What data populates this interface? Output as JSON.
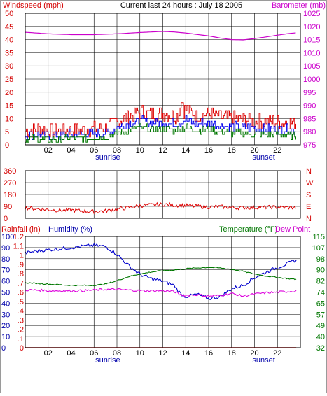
{
  "header": {
    "left": "Windspeed (mph)",
    "center": "Current last 24 hours : July 18 2005",
    "right": "Barometer (mb)"
  },
  "colors": {
    "wind_axis": "#d40000",
    "baro_axis": "#cc00cc",
    "dir_axis": "#d40000",
    "rain_axis": "#d40000",
    "hum_axis": "#0000aa",
    "temp_axis": "#007700",
    "grid": "#000000",
    "frame": "#000000",
    "sun_label": "#0000aa"
  },
  "chart_data": [
    {
      "type": "line",
      "title": "",
      "xlabel": "",
      "x_ticks": [
        "02",
        "04",
        "06",
        "08",
        "10",
        "12",
        "14",
        "16",
        "18",
        "20",
        "22"
      ],
      "x_annotations": [
        {
          "label": "sunrise",
          "x": 7.2
        },
        {
          "label": "sunset",
          "x": 20.8
        }
      ],
      "xlim": [
        0,
        24
      ],
      "left_axis": {
        "label": "Windspeed (mph)",
        "ylim": [
          0,
          50
        ],
        "ticks": [
          "0",
          "5",
          "10",
          "15",
          "20",
          "25",
          "30",
          "35",
          "40",
          "45",
          "50"
        ]
      },
      "right_axis": {
        "label": "Barometer (mb)",
        "ylim": [
          975,
          1025
        ],
        "ticks": [
          "975",
          "980",
          "985",
          "990",
          "995",
          "1000",
          "1005",
          "1010",
          "1015",
          "1020",
          "1025"
        ]
      },
      "series": [
        {
          "color": "#dd0000",
          "axis": "left",
          "role": "gust",
          "x": [
            0,
            1,
            2,
            3,
            4,
            5,
            6,
            7,
            8,
            9,
            10,
            11,
            12,
            13,
            14,
            15,
            16,
            17,
            18,
            19,
            20,
            21,
            22,
            23,
            23.7
          ],
          "y": [
            5.5,
            6,
            5.5,
            5.5,
            5.5,
            6,
            6,
            6.5,
            9,
            11,
            12.5,
            12,
            12,
            11,
            13.5,
            11,
            12,
            10.5,
            10,
            9.5,
            9,
            9,
            8.5,
            8.5,
            8
          ]
        },
        {
          "color": "#0000ee",
          "axis": "left",
          "role": "average",
          "x": [
            0,
            1,
            2,
            3,
            4,
            5,
            6,
            7,
            8,
            9,
            10,
            11,
            12,
            13,
            14,
            15,
            16,
            17,
            18,
            19,
            20,
            21,
            22,
            23,
            23.7
          ],
          "y": [
            3.5,
            4,
            3.5,
            3.5,
            4,
            4,
            4,
            4.5,
            6.5,
            8,
            9,
            8.5,
            8.5,
            8,
            9.5,
            8,
            8.5,
            7.5,
            7,
            6.5,
            6.5,
            6,
            6,
            6,
            5.5
          ]
        },
        {
          "color": "#007700",
          "axis": "left",
          "role": "lull",
          "x": [
            0,
            1,
            2,
            3,
            4,
            5,
            6,
            7,
            8,
            9,
            10,
            11,
            12,
            13,
            14,
            15,
            16,
            17,
            18,
            19,
            20,
            21,
            22,
            23,
            23.7
          ],
          "y": [
            2,
            2.5,
            2,
            2,
            2.5,
            2.5,
            2.5,
            3,
            4.5,
            5.5,
            6.5,
            6,
            6,
            5.5,
            6.5,
            5.5,
            6,
            5,
            4.5,
            4.5,
            4,
            4,
            4,
            3.5,
            3.5
          ]
        },
        {
          "color": "#cc00cc",
          "axis": "right",
          "role": "barometer",
          "x": [
            0,
            2,
            4,
            6,
            8,
            10,
            12,
            13,
            14,
            16,
            17,
            18,
            19,
            20,
            21,
            22,
            23,
            23.7
          ],
          "y": [
            1017.8,
            1017.2,
            1016.9,
            1016.9,
            1017.2,
            1017.7,
            1018.1,
            1017.9,
            1017.5,
            1016.4,
            1015.6,
            1015.0,
            1014.9,
            1015.4,
            1016.0,
            1016.7,
            1017.3,
            1017.6
          ]
        }
      ]
    },
    {
      "type": "line",
      "title": "",
      "xlim": [
        0,
        24
      ],
      "left_axis": {
        "ylim": [
          0,
          360
        ],
        "ticks": [
          "0",
          "90",
          "180",
          "270",
          "360"
        ]
      },
      "right_axis": {
        "ticks": [
          "N",
          "E",
          "S",
          "W",
          "N"
        ]
      },
      "series": [
        {
          "color": "#dd0000",
          "axis": "left",
          "role": "wind direction",
          "x": [
            0,
            1,
            2,
            3,
            4,
            5,
            6,
            7,
            8,
            9,
            10,
            11,
            12,
            13,
            14,
            15,
            16,
            17,
            18,
            19,
            20,
            21,
            22,
            23,
            23.7
          ],
          "y": [
            80,
            72,
            65,
            60,
            62,
            55,
            50,
            55,
            70,
            80,
            95,
            100,
            105,
            100,
            95,
            90,
            85,
            88,
            82,
            80,
            82,
            84,
            85,
            82,
            80
          ]
        }
      ]
    },
    {
      "type": "line",
      "title": "",
      "x_ticks": [
        "02",
        "04",
        "06",
        "08",
        "10",
        "12",
        "14",
        "16",
        "18",
        "20",
        "22"
      ],
      "x_annotations": [
        {
          "label": "sunrise",
          "x": 7.2
        },
        {
          "label": "sunset",
          "x": 20.8
        }
      ],
      "xlim": [
        0,
        24
      ],
      "left_labels": {
        "rain": "Rainfall (in)",
        "humidity": "Humidity (%)"
      },
      "right_labels": {
        "temp": "Temperature (°F)",
        "dew": "Dew Point"
      },
      "rain_axis": {
        "ylim": [
          0,
          1.2
        ],
        "ticks": [
          "0",
          ".1",
          ".2",
          ".3",
          ".4",
          ".5",
          ".6",
          ".7",
          ".8",
          ".9",
          "1",
          "1.1",
          "1.2"
        ]
      },
      "humidity_axis": {
        "ylim": [
          0,
          100
        ],
        "ticks": [
          "0",
          "10",
          "20",
          "30",
          "40",
          "50",
          "60",
          "70",
          "80",
          "90",
          "100"
        ]
      },
      "temp_axis": {
        "ylim": [
          32,
          115
        ],
        "ticks": [
          "32",
          "40",
          "49",
          "57",
          "65",
          "74",
          "82",
          "90",
          "98",
          "107",
          "115"
        ]
      },
      "series": [
        {
          "color": "#0000cc",
          "axis": "humidity",
          "role": "humidity",
          "x": [
            0,
            1,
            2,
            3,
            4,
            5,
            6,
            7,
            8,
            9,
            10,
            11,
            12,
            13,
            13.5,
            14,
            15,
            16,
            17,
            18,
            19,
            20,
            21,
            22,
            23,
            23.7
          ],
          "y": [
            85,
            87,
            88,
            89,
            90,
            91,
            92,
            91,
            84,
            74,
            66,
            62,
            60,
            56,
            49,
            46,
            48,
            44,
            46,
            53,
            56,
            63,
            68,
            72,
            76,
            79
          ]
        },
        {
          "color": "#007700",
          "axis": "temp",
          "role": "temperature",
          "x": [
            0,
            1,
            2,
            3,
            4,
            5,
            6,
            7,
            8,
            9,
            10,
            11,
            12,
            13,
            14,
            15,
            16,
            17,
            18,
            19,
            20,
            21,
            22,
            23,
            23.7
          ],
          "y": [
            80.5,
            80,
            79.5,
            79,
            78.5,
            78.5,
            78.5,
            79.5,
            82,
            85,
            87,
            88.5,
            89.5,
            90,
            91,
            91.5,
            92,
            91.5,
            90.5,
            89,
            87,
            85.5,
            84.5,
            83.5,
            83
          ]
        },
        {
          "color": "#dd00dd",
          "axis": "temp",
          "role": "dew point",
          "x": [
            0,
            1,
            2,
            3,
            4,
            5,
            6,
            7,
            8,
            9,
            10,
            11,
            12,
            13,
            13.5,
            14,
            15,
            16,
            17,
            18,
            19,
            20,
            21,
            22,
            23,
            23.7
          ],
          "y": [
            75,
            75,
            74.5,
            74.5,
            74.5,
            74.5,
            75,
            75.5,
            75.5,
            75,
            74.5,
            74.5,
            74.5,
            74,
            71.5,
            71,
            71.5,
            70.5,
            71,
            72.5,
            70.5,
            72,
            73,
            73.5,
            74,
            74.5
          ]
        },
        {
          "color": "#dd0000",
          "axis": "rain",
          "role": "rainfall",
          "x": [
            0,
            23.7
          ],
          "y": [
            0,
            0
          ]
        }
      ]
    }
  ]
}
